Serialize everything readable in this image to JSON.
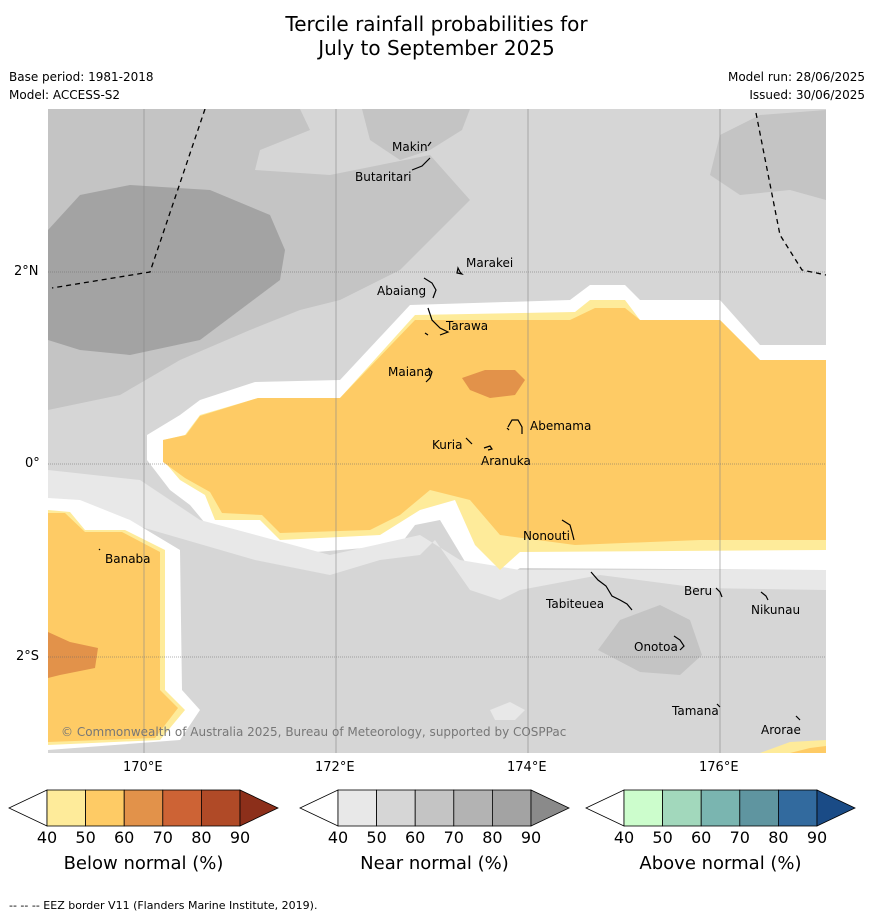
{
  "title": {
    "line1": "Tercile rainfall probabilities for",
    "line2": "July to September 2025"
  },
  "meta": {
    "base_period": "Base period: 1981-2018",
    "model": "Model: ACCESS-S2",
    "model_run": "Model run: 28/06/2025",
    "issued": "Issued: 30/06/2025"
  },
  "axes": {
    "lat_ticks": [
      "2°N",
      "0°",
      "2°S"
    ],
    "lon_ticks": [
      "170°E",
      "172°E",
      "174°E",
      "176°E"
    ]
  },
  "places": [
    {
      "name": "Makin"
    },
    {
      "name": "Butaritari"
    },
    {
      "name": "Marakei"
    },
    {
      "name": "Abaiang"
    },
    {
      "name": "Tarawa"
    },
    {
      "name": "Maiana"
    },
    {
      "name": "Abemama"
    },
    {
      "name": "Kuria"
    },
    {
      "name": "Aranuka"
    },
    {
      "name": "Nonouti"
    },
    {
      "name": "Banaba"
    },
    {
      "name": "Tabiteuea"
    },
    {
      "name": "Beru"
    },
    {
      "name": "Nikunau"
    },
    {
      "name": "Onotoa"
    },
    {
      "name": "Tamana"
    },
    {
      "name": "Arorae"
    }
  ],
  "copyright": "© Commonwealth of Australia 2025, Bureau of Meteorology, supported by COSPPac",
  "colorbars": [
    {
      "label": "Below normal (%)",
      "ticks": [
        "40",
        "50",
        "60",
        "70",
        "80",
        "90"
      ],
      "colors": [
        "#ffffff",
        "#feeb9a",
        "#fecb65",
        "#e2924a",
        "#cd6335",
        "#b04a27",
        "#8c2f1a"
      ]
    },
    {
      "label": "Near normal (%)",
      "ticks": [
        "40",
        "50",
        "60",
        "70",
        "80",
        "90"
      ],
      "colors": [
        "#ffffff",
        "#e8e8e8",
        "#d6d6d6",
        "#c4c4c4",
        "#b3b3b3",
        "#a3a3a3",
        "#8a8a8a"
      ]
    },
    {
      "label": "Above normal (%)",
      "ticks": [
        "40",
        "50",
        "60",
        "70",
        "80",
        "90"
      ],
      "colors": [
        "#ffffff",
        "#ccfdcc",
        "#a2d8bc",
        "#7ab5b0",
        "#5f95a0",
        "#326a9e",
        "#1a4b86"
      ]
    }
  ],
  "footer": "--  --  -- EEZ border V11 (Flanders Marine Institute, 2019)."
}
